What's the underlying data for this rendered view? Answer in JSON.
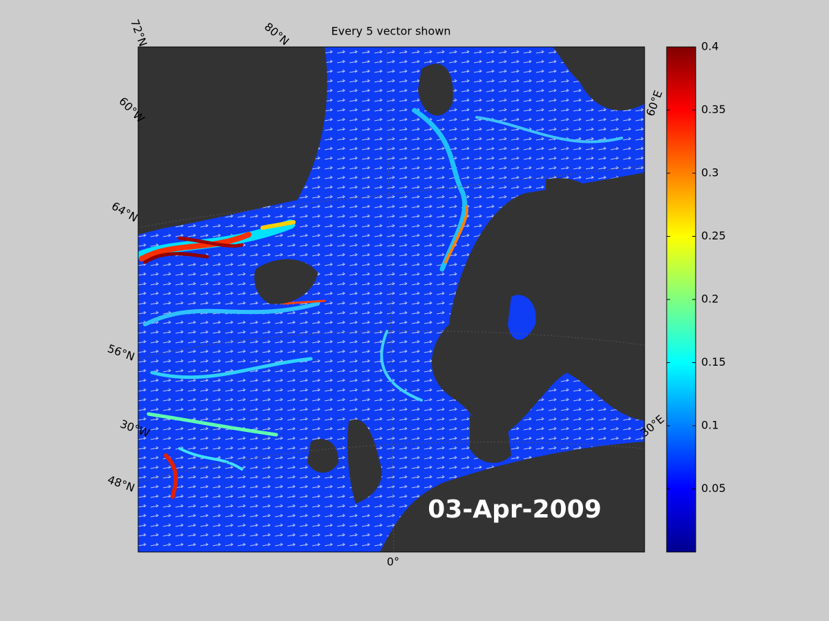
{
  "title": "Every 5 vector shown",
  "date": "03-Apr-2009",
  "grid_labels": [
    "72°N",
    "80°N",
    "60°W",
    "64°N",
    "56°N",
    "30°W",
    "48°N",
    "0°",
    "30°E",
    "60°E"
  ],
  "colorbar": {
    "colormap": "jet",
    "lim": [
      0,
      0.4
    ],
    "ticks": [
      0.05,
      0.1,
      0.15,
      0.2,
      0.25,
      0.3,
      0.35,
      0.4
    ]
  }
}
